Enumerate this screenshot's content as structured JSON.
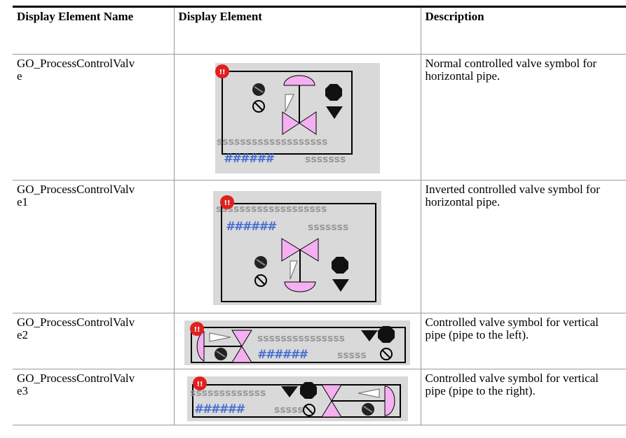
{
  "table": {
    "header": [
      "Display Element Name",
      "Display Element",
      "Description"
    ],
    "rows": [
      {
        "name": "GO_ProcessControlValve",
        "description": "Normal controlled valve symbol for horizontal pipe.",
        "symbol_text": [
          "!!",
          "sssssssssssssssssss",
          "######",
          "sssssss"
        ]
      },
      {
        "name": "GO_ProcessControlValve1",
        "description": "Inverted controlled valve symbol for horizontal pipe.",
        "symbol_text": [
          "!!",
          "sssssssssssssssssss",
          "######",
          "sssssss"
        ]
      },
      {
        "name": "GO_ProcessControlValve2",
        "description": "Controlled valve symbol for vertical pipe (pipe to the left).",
        "symbol_text": [
          "!!",
          "sssssssssssssss",
          "######",
          "sssss"
        ]
      },
      {
        "name": "GO_ProcessControlValve3",
        "description": "Controlled valve symbol for vertical pipe (pipe to the right).",
        "symbol_text": [
          "!!",
          "sssssssssssss",
          "######",
          "sssss"
        ]
      }
    ]
  }
}
